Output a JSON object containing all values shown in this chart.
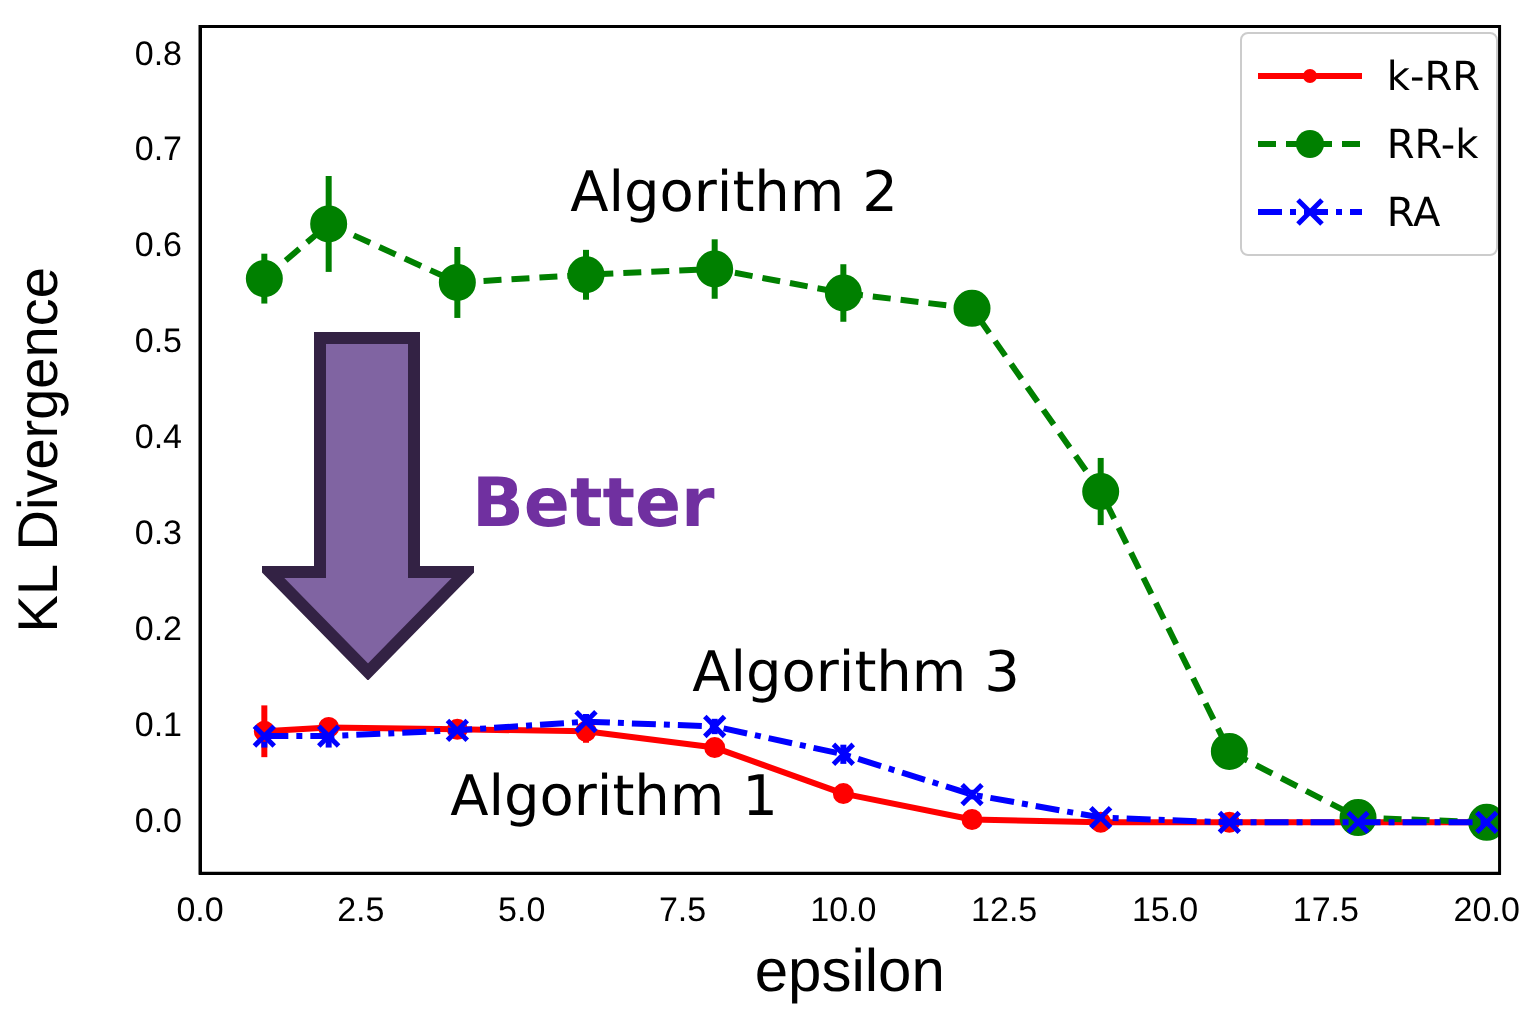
{
  "chart_data": {
    "type": "line",
    "xlabel": "epsilon",
    "ylabel": "KL Divergence",
    "x": [
      1,
      2,
      4,
      6,
      8,
      10,
      12,
      14,
      16,
      18,
      20
    ],
    "series": [
      {
        "name": "k-RR",
        "color": "#ff0000",
        "marker": "circle",
        "line_style": "solid",
        "values": [
          0.095,
          0.099,
          0.097,
          0.095,
          0.078,
          0.03,
          0.003,
          0.0,
          0.0,
          0.0,
          0.0
        ],
        "errors": [
          0.027,
          0.01,
          0.005,
          0.012,
          0.007,
          0.005,
          null,
          null,
          null,
          null,
          null
        ]
      },
      {
        "name": "RR-k",
        "color": "#008000",
        "marker": "circle",
        "line_style": "dashed",
        "values": [
          0.567,
          0.624,
          0.563,
          0.571,
          0.577,
          0.552,
          0.536,
          0.345,
          0.074,
          0.005,
          0.0
        ],
        "errors": [
          0.026,
          0.05,
          0.037,
          0.026,
          0.031,
          0.03,
          0.017,
          0.035,
          0.01,
          null,
          null
        ]
      },
      {
        "name": "RA",
        "color": "#0000ff",
        "marker": "cross",
        "line_style": "dashdot",
        "values": [
          0.09,
          0.09,
          0.096,
          0.105,
          0.1,
          0.071,
          0.029,
          0.005,
          0.0,
          0.0,
          0.0
        ],
        "errors": [
          0.012,
          0.012,
          null,
          0.008,
          0.008,
          0.01,
          0.005,
          null,
          null,
          null,
          null
        ]
      }
    ],
    "xlim": [
      0,
      20.2
    ],
    "xticks": [
      {
        "value": 0,
        "label": "0.0"
      },
      {
        "value": 2.5,
        "label": "2.5"
      },
      {
        "value": 5,
        "label": "5.0"
      },
      {
        "value": 7.5,
        "label": "7.5"
      },
      {
        "value": 10,
        "label": "10.0"
      },
      {
        "value": 12.5,
        "label": "12.5"
      },
      {
        "value": 15,
        "label": "15.0"
      },
      {
        "value": 17.5,
        "label": "17.5"
      },
      {
        "value": 20,
        "label": "20.0"
      }
    ],
    "ylim": [
      -0.053,
      0.83
    ],
    "yticks": [
      {
        "value": 0,
        "label": "0.0"
      },
      0.1,
      0.2,
      0.3,
      0.4,
      0.5,
      0.6,
      0.7,
      0.8
    ],
    "legend": "top right",
    "grid": false,
    "annotations": [
      "Algorithm 2",
      "Algorithm 3",
      "Algorithm 1",
      "Better"
    ]
  }
}
